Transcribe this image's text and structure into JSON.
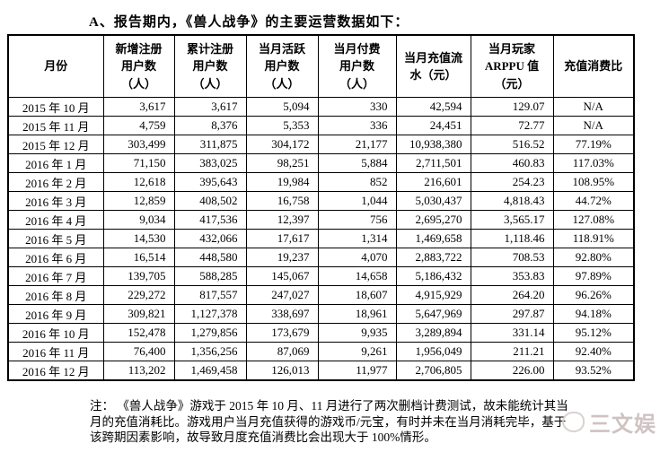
{
  "page": {
    "title": "A、报告期内，《兽人战争》的主要运营数据如下："
  },
  "table": {
    "columns": [
      {
        "id": "month",
        "lines": [
          "月份"
        ]
      },
      {
        "id": "new-registered-users",
        "lines": [
          "新增注册",
          "用户数",
          "（人）"
        ]
      },
      {
        "id": "cumulative-registered-users",
        "lines": [
          "累计注册",
          "用户数",
          "（人）"
        ]
      },
      {
        "id": "monthly-active-users",
        "lines": [
          "当月活跃",
          "用户数",
          "（人）"
        ]
      },
      {
        "id": "monthly-paying-users",
        "lines": [
          "当月付费",
          "用户数",
          "（人）"
        ]
      },
      {
        "id": "monthly-recharge-flow",
        "lines": [
          "当月充值流",
          "水（元）"
        ]
      },
      {
        "id": "monthly-arppu",
        "lines": [
          "当月玩家",
          "ARPPU 值",
          "（元）"
        ]
      },
      {
        "id": "recharge-consumption-ratio",
        "lines": [
          "充值消费比"
        ]
      }
    ],
    "rows": [
      [
        "2015 年 10 月",
        "3,617",
        "3,617",
        "5,094",
        "330",
        "42,594",
        "129.07",
        "N/A"
      ],
      [
        "2015 年 11 月",
        "4,759",
        "8,376",
        "5,353",
        "336",
        "24,451",
        "72.77",
        "N/A"
      ],
      [
        "2015 年 12 月",
        "303,499",
        "311,875",
        "304,172",
        "21,177",
        "10,938,380",
        "516.52",
        "77.19%"
      ],
      [
        "2016 年 1 月",
        "71,150",
        "383,025",
        "98,251",
        "5,884",
        "2,711,501",
        "460.83",
        "117.03%"
      ],
      [
        "2016 年 2 月",
        "12,618",
        "395,643",
        "19,984",
        "852",
        "216,601",
        "254.23",
        "108.95%"
      ],
      [
        "2016 年 3 月",
        "12,859",
        "408,502",
        "16,758",
        "1,044",
        "5,030,437",
        "4,818.43",
        "44.72%"
      ],
      [
        "2016 年 4 月",
        "9,034",
        "417,536",
        "12,397",
        "756",
        "2,695,270",
        "3,565.17",
        "127.08%"
      ],
      [
        "2016 年 5 月",
        "14,530",
        "432,066",
        "17,617",
        "1,314",
        "1,469,658",
        "1,118.46",
        "118.91%"
      ],
      [
        "2016 年 6 月",
        "16,514",
        "448,580",
        "19,237",
        "4,070",
        "2,883,722",
        "708.53",
        "92.80%"
      ],
      [
        "2016 年 7 月",
        "139,705",
        "588,285",
        "145,067",
        "14,658",
        "5,186,432",
        "353.83",
        "97.89%"
      ],
      [
        "2016 年 8 月",
        "229,272",
        "817,557",
        "247,027",
        "18,607",
        "4,915,929",
        "264.20",
        "96.26%"
      ],
      [
        "2016 年 9 月",
        "309,821",
        "1,127,378",
        "338,697",
        "18,961",
        "5,647,969",
        "297.87",
        "94.18%"
      ],
      [
        "2016 年 10 月",
        "152,478",
        "1,279,856",
        "173,679",
        "9,935",
        "3,289,894",
        "331.14",
        "95.12%"
      ],
      [
        "2016 年 11 月",
        "76,400",
        "1,356,256",
        "87,069",
        "9,261",
        "1,956,049",
        "211.21",
        "92.40%"
      ],
      [
        "2016 年 12 月",
        "113,202",
        "1,469,458",
        "126,013",
        "11,977",
        "2,706,805",
        "226.00",
        "93.52%"
      ]
    ]
  },
  "note": {
    "lines": [
      "注： 《兽人战争》游戏于 2015 年 10 月、11 月进行了两次删档计费测试，故未能统计其当",
      "月的充值消耗比。游戏用户当月充值获得的游戏币/元宝，有时并未在当月消耗完毕，基于",
      "该跨期因素影响，故导致月度充值消费比会出现大于 100%情形。"
    ]
  },
  "watermark": {
    "text": "三文娱",
    "color": "#cbbcbc"
  }
}
